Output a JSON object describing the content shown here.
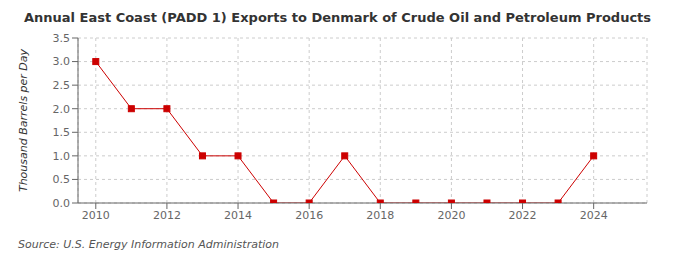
{
  "chart_data": {
    "type": "line",
    "title": "Annual East Coast (PADD 1) Exports to Denmark of Crude Oil and Petroleum Products",
    "ylabel": "Thousand Barrels per Day",
    "annotations": [
      "Source: U.S. Energy Information Administration"
    ],
    "x": [
      2010,
      2011,
      2012,
      2013,
      2014,
      2015,
      2016,
      2017,
      2018,
      2019,
      2020,
      2021,
      2022,
      2023,
      2024
    ],
    "values": [
      3.0,
      2.0,
      2.0,
      1.0,
      1.0,
      0.0,
      0.0,
      1.0,
      0.0,
      0.0,
      0.0,
      0.0,
      0.0,
      0.0,
      1.0
    ],
    "color": "#cc0000",
    "marker": "square",
    "line_style": "solid",
    "xlim": [
      2009.5,
      2025.5
    ],
    "xticks": [
      2010,
      2012,
      2014,
      2016,
      2018,
      2020,
      2022,
      2024
    ],
    "ylim": [
      0.0,
      3.5
    ],
    "yticks": [
      {
        "value": 0.0,
        "label": "0.0"
      },
      {
        "value": 0.5,
        "label": "0.5"
      },
      {
        "value": 1.0,
        "label": "1.0"
      },
      {
        "value": 1.5,
        "label": "1.5"
      },
      {
        "value": 2.0,
        "label": "2.0"
      },
      {
        "value": 2.5,
        "label": "2.5"
      },
      {
        "value": 3.0,
        "label": "3.0"
      },
      {
        "value": 3.5,
        "label": "3.5"
      }
    ],
    "grid": true
  }
}
